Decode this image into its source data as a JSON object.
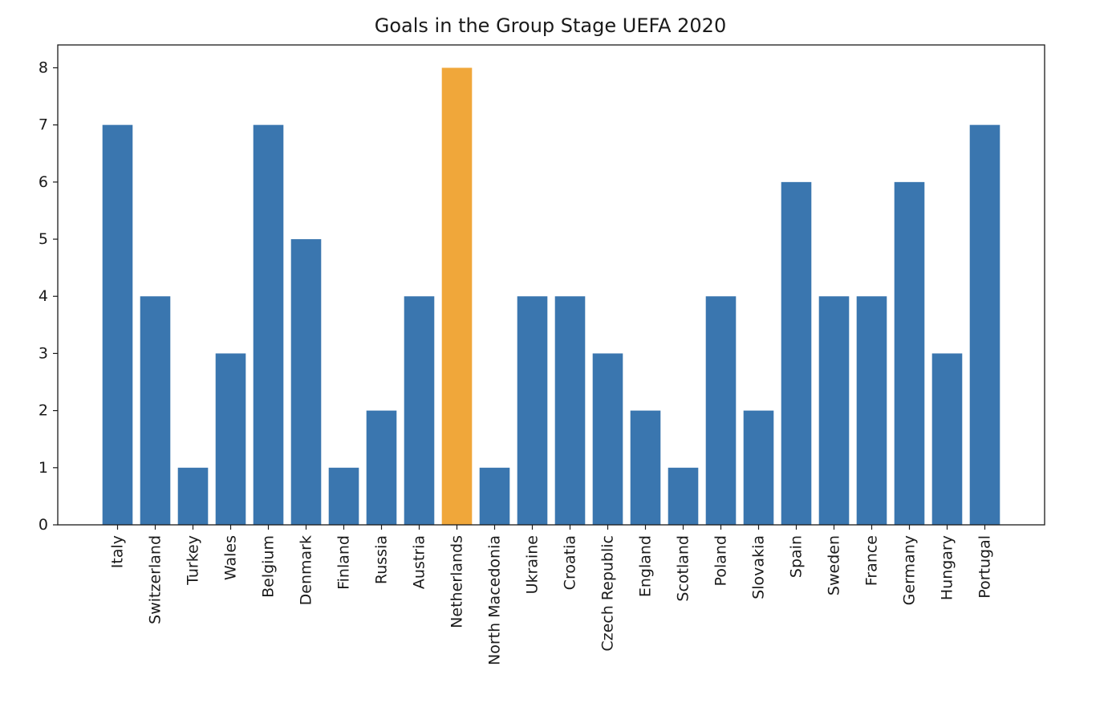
{
  "chart_data": {
    "type": "bar",
    "title": "Goals in the Group Stage UEFA 2020",
    "xlabel": "",
    "ylabel": "",
    "categories": [
      "Italy",
      "Switzerland",
      "Turkey",
      "Wales",
      "Belgium",
      "Denmark",
      "Finland",
      "Russia",
      "Austria",
      "Netherlands",
      "North Macedonia",
      "Ukraine",
      "Croatia",
      "Czech Republic",
      "England",
      "Scotland",
      "Poland",
      "Slovakia",
      "Spain",
      "Sweden",
      "France",
      "Germany",
      "Hungary",
      "Portugal"
    ],
    "values": [
      7,
      4,
      1,
      3,
      7,
      5,
      1,
      2,
      4,
      8,
      1,
      4,
      4,
      3,
      2,
      1,
      4,
      2,
      6,
      4,
      4,
      6,
      3,
      7
    ],
    "highlight": "Netherlands",
    "ylim": [
      0,
      8.4
    ],
    "yticks": [
      0,
      1,
      2,
      3,
      4,
      5,
      6,
      7,
      8
    ],
    "grid": false,
    "colors": {
      "bar": "#3a76af",
      "highlight": "#f0a73a",
      "axis": "#1a1a1a"
    }
  }
}
